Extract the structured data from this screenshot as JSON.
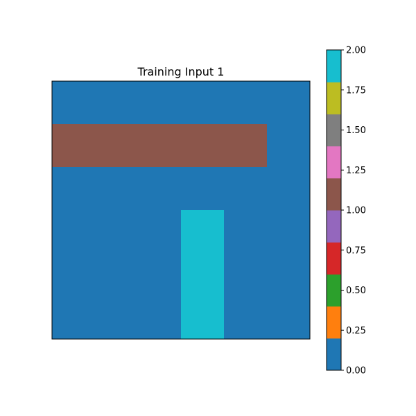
{
  "chart_data": {
    "type": "heatmap",
    "title": "Training Input 1",
    "grid": {
      "rows": 6,
      "cols": 6,
      "values": [
        [
          0,
          0,
          0,
          0,
          0,
          0
        ],
        [
          1,
          1,
          1,
          1,
          1,
          0
        ],
        [
          0,
          0,
          0,
          0,
          0,
          0
        ],
        [
          0,
          0,
          0,
          2,
          0,
          0
        ],
        [
          0,
          0,
          0,
          2,
          0,
          0
        ],
        [
          0,
          0,
          0,
          2,
          0,
          0
        ]
      ]
    },
    "colorbar": {
      "vmin": 0,
      "vmax": 2,
      "ticks": [
        0,
        0.25,
        0.5,
        0.75,
        1.0,
        1.25,
        1.5,
        1.75,
        2.0
      ],
      "tick_labels": [
        "0.00",
        "0.25",
        "0.50",
        "0.75",
        "1.00",
        "1.25",
        "1.50",
        "1.75",
        "2.00"
      ],
      "colors": [
        "#1f77b4",
        "#ff7f0e",
        "#2ca02c",
        "#d62728",
        "#9467bd",
        "#8c564b",
        "#e377c2",
        "#7f7f7f",
        "#bcbd22",
        "#17becf"
      ]
    },
    "xticks": false,
    "yticks": false
  }
}
